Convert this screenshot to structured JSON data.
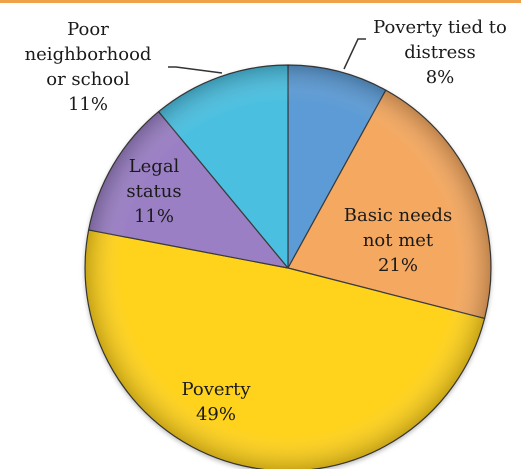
{
  "chart_data": {
    "type": "pie",
    "title": "",
    "start_angle_deg": 0,
    "direction": "clockwise",
    "slices": [
      {
        "label": "Poverty tied to distress",
        "label_lines": [
          "Poverty tied to",
          "distress"
        ],
        "percent_label": "8%",
        "value": 8,
        "color": "#5b9bd5"
      },
      {
        "label": "Basic needs not met",
        "label_lines": [
          "Basic needs",
          "not met"
        ],
        "percent_label": "21%",
        "value": 21,
        "color": "#f4a860"
      },
      {
        "label": "Poverty",
        "label_lines": [
          "Poverty"
        ],
        "percent_label": "49%",
        "value": 49,
        "color": "#ffd21f"
      },
      {
        "label": "Legal status",
        "label_lines": [
          "Legal",
          "status"
        ],
        "percent_label": "11%",
        "value": 11,
        "color": "#9a7fc4"
      },
      {
        "label": "Poor neighborhood or school",
        "label_lines": [
          "Poor",
          "neighborhood",
          "or school"
        ],
        "percent_label": "11%",
        "value": 11,
        "color": "#4bbfe0"
      }
    ]
  }
}
